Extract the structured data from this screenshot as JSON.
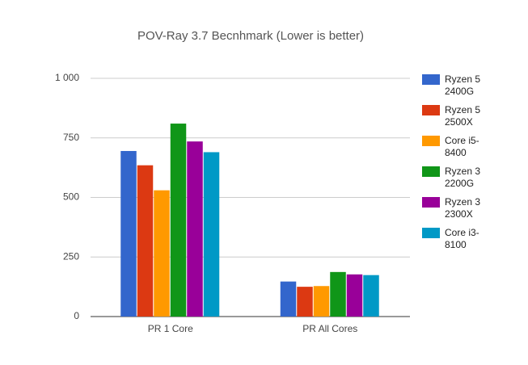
{
  "chart_data": {
    "type": "bar",
    "title": "POV-Ray 3.7 Becnhmark (Lower is better)",
    "categories": [
      "PR 1 Core",
      "PR All Cores"
    ],
    "series": [
      {
        "name": "Ryzen 5 2400G",
        "color": "#3366cc",
        "values": [
          695,
          147
        ]
      },
      {
        "name": "Ryzen 5 2500X",
        "color": "#dc3912",
        "values": [
          635,
          125
        ]
      },
      {
        "name": "Core i5-8400",
        "color": "#ff9900",
        "values": [
          530,
          128
        ]
      },
      {
        "name": "Ryzen 3 2200G",
        "color": "#109618",
        "values": [
          810,
          187
        ]
      },
      {
        "name": "Ryzen 3 2300X",
        "color": "#990099",
        "values": [
          735,
          177
        ]
      },
      {
        "name": "Core i3-8100",
        "color": "#0099c6",
        "values": [
          690,
          174
        ]
      }
    ],
    "ylim": [
      0,
      1000
    ],
    "yticks": [
      0,
      250,
      500,
      750,
      {
        "value": 1000,
        "label": "1 000"
      }
    ],
    "grid": true,
    "legend": "right"
  }
}
